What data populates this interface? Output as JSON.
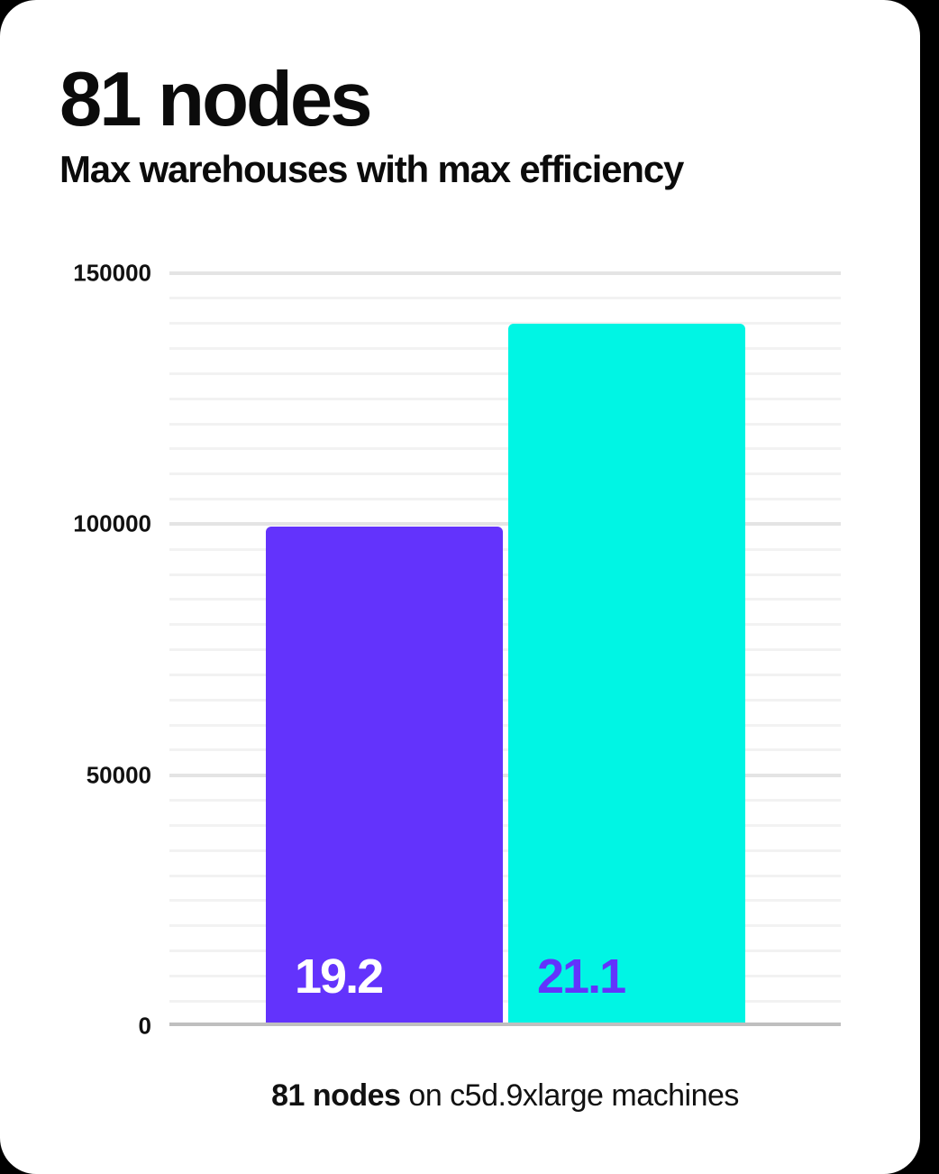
{
  "header": {
    "title": "81 nodes",
    "subtitle": "Max warehouses with max efficiency"
  },
  "caption": {
    "bold": "81 nodes",
    "rest": " on c5d.9xlarge machines"
  },
  "colors": {
    "page_bg": "#000000",
    "card_bg": "#ffffff",
    "text": "#0b0b0b",
    "axis_line": "#bfbfbf",
    "grid_minor": "#f2f2f2",
    "grid_major": "#e4e4e4",
    "purple": "#6333fc",
    "cyan": "#00f5e4"
  },
  "chart_data": {
    "type": "bar",
    "title": "81 nodes",
    "subtitle": "Max warehouses with max efficiency",
    "caption": "81 nodes on c5d.9xlarge machines",
    "xlabel": "",
    "ylabel": "",
    "ylim": [
      0,
      150000
    ],
    "yticks": [
      0,
      50000,
      100000,
      150000
    ],
    "minor_gridline_step": 5000,
    "grid": true,
    "legend": false,
    "bars": [
      {
        "data_label": "19.2",
        "value": 99500,
        "bar_color": "#6333fc",
        "label_color": "#ffffff"
      },
      {
        "data_label": "21.1",
        "value": 140000,
        "bar_color": "#00f5e4",
        "label_color": "#6333fc"
      }
    ]
  }
}
